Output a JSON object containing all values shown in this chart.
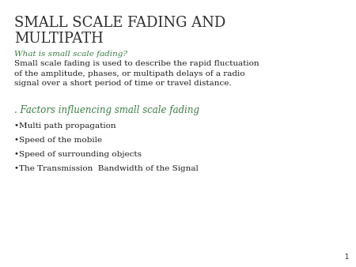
{
  "background_color": "#ffffff",
  "title_line1": "SMALL SCALE FADING AND",
  "title_line2": "MULTIPATH",
  "title_color": "#2d2d2d",
  "title_fontsize": 13,
  "title_font": "serif",
  "question_text": "What is small scale fading?",
  "question_color": "#3a7d44",
  "question_fontsize": 7.5,
  "body_text": "Small scale fading is used to describe the rapid fluctuation\nof the amplitude, phases, or multipath delays of a radio\nsignal over a short period of time or travel distance.",
  "body_color": "#1a1a1a",
  "body_fontsize": 7.5,
  "body_font": "serif",
  "section_text": ". Factors influencing small scale fading",
  "section_color": "#3a7d44",
  "section_fontsize": 8.5,
  "bullet_items": [
    "•Multi path propagation",
    "•Speed of the mobile",
    "•Speed of surrounding objects",
    "•The Transmission  Bandwidth of the Signal"
  ],
  "bullet_color": "#1a1a1a",
  "bullet_fontsize": 7.5,
  "bullet_font": "serif",
  "page_number": "1",
  "page_number_color": "#1a1a1a",
  "page_number_fontsize": 6
}
